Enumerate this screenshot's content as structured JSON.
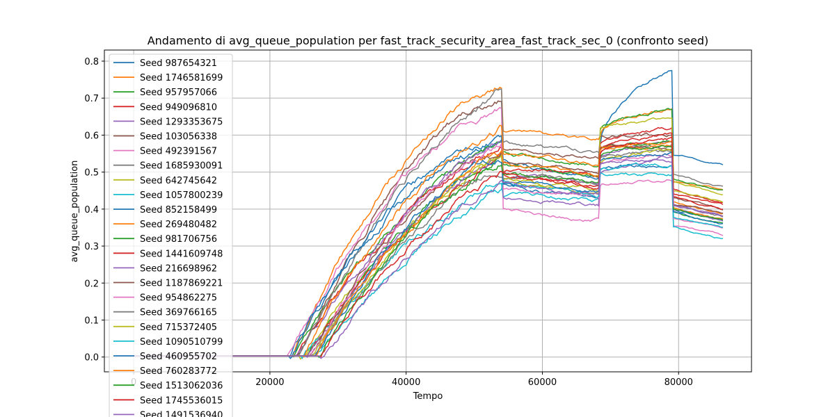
{
  "chart_data": {
    "type": "line",
    "title": "Andamento di avg_queue_population per fast_track_security_area_fast_track_sec_0 (confronto seed)",
    "xlabel": "Tempo",
    "ylabel": "avg_queue_population",
    "xlim": [
      -4300,
      90700
    ],
    "ylim": [
      -0.04,
      0.83
    ],
    "xticks": [
      0,
      20000,
      40000,
      60000,
      80000
    ],
    "xtick_labels": [
      "0",
      "20000",
      "40000",
      "60000",
      "80000"
    ],
    "yticks": [
      0.0,
      0.1,
      0.2,
      0.3,
      0.4,
      0.5,
      0.6,
      0.7,
      0.8
    ],
    "ytick_labels": [
      "0.0",
      "0.1",
      "0.2",
      "0.3",
      "0.4",
      "0.5",
      "0.6",
      "0.7",
      "0.8"
    ],
    "grid": true,
    "legend_position": "upper-left",
    "series": [
      {
        "name": "Seed 987654321",
        "color": "#1f77b4",
        "start": 22900,
        "plateau": 0.55,
        "j1": 0.52,
        "j2": 0.58,
        "peak2": 0.78,
        "end": 0.52
      },
      {
        "name": "Seed 1746581699",
        "color": "#ff7f0e",
        "start": 23200,
        "plateau": 0.72,
        "j1": 0.62,
        "j2": 0.6,
        "peak2": 0.68,
        "end": 0.45
      },
      {
        "name": "Seed 957957066",
        "color": "#2ca02c",
        "start": 23500,
        "plateau": 0.56,
        "j1": 0.55,
        "j2": 0.62,
        "peak2": 0.67,
        "end": 0.45
      },
      {
        "name": "Seed 949096810",
        "color": "#d62728",
        "start": 23700,
        "plateau": 0.58,
        "j1": 0.52,
        "j2": 0.58,
        "peak2": 0.62,
        "end": 0.41
      },
      {
        "name": "Seed 1293353675",
        "color": "#9467bd",
        "start": 23900,
        "plateau": 0.6,
        "j1": 0.5,
        "j2": 0.54,
        "peak2": 0.58,
        "end": 0.38
      },
      {
        "name": "Seed 103056338",
        "color": "#8c564b",
        "start": 24100,
        "plateau": 0.68,
        "j1": 0.57,
        "j2": 0.6,
        "peak2": 0.6,
        "end": 0.4
      },
      {
        "name": "Seed 492391567",
        "color": "#e377c2",
        "start": 22600,
        "plateau": 0.65,
        "j1": 0.4,
        "j2": 0.46,
        "peak2": 0.48,
        "end": 0.33
      },
      {
        "name": "Seed 1685930091",
        "color": "#7f7f7f",
        "start": 24300,
        "plateau": 0.71,
        "j1": 0.58,
        "j2": 0.55,
        "peak2": 0.57,
        "end": 0.46
      },
      {
        "name": "Seed 642745642",
        "color": "#bcbd22",
        "start": 24500,
        "plateau": 0.54,
        "j1": 0.47,
        "j2": 0.62,
        "peak2": 0.64,
        "end": 0.44
      },
      {
        "name": "Seed 1057800239",
        "color": "#17becf",
        "start": 24700,
        "plateau": 0.49,
        "j1": 0.45,
        "j2": 0.49,
        "peak2": 0.49,
        "end": 0.32
      },
      {
        "name": "Seed 852158499",
        "color": "#1f77b4",
        "start": 23000,
        "plateau": 0.57,
        "j1": 0.46,
        "j2": 0.51,
        "peak2": 0.52,
        "end": 0.37
      },
      {
        "name": "Seed 269480482",
        "color": "#ff7f0e",
        "start": 24900,
        "plateau": 0.61,
        "j1": 0.55,
        "j2": 0.57,
        "peak2": 0.57,
        "end": 0.39
      },
      {
        "name": "Seed 981706756",
        "color": "#2ca02c",
        "start": 25100,
        "plateau": 0.54,
        "j1": 0.52,
        "j2": 0.56,
        "peak2": 0.58,
        "end": 0.36
      },
      {
        "name": "Seed 1441609748",
        "color": "#d62728",
        "start": 25300,
        "plateau": 0.55,
        "j1": 0.49,
        "j2": 0.56,
        "peak2": 0.6,
        "end": 0.42
      },
      {
        "name": "Seed 216698962",
        "color": "#9467bd",
        "start": 25500,
        "plateau": 0.58,
        "j1": 0.44,
        "j2": 0.5,
        "peak2": 0.53,
        "end": 0.37
      },
      {
        "name": "Seed 1187869221",
        "color": "#8c564b",
        "start": 25700,
        "plateau": 0.55,
        "j1": 0.53,
        "j2": 0.57,
        "peak2": 0.57,
        "end": 0.39
      },
      {
        "name": "Seed 954862275",
        "color": "#e377c2",
        "start": 25900,
        "plateau": 0.58,
        "j1": 0.46,
        "j2": 0.52,
        "peak2": 0.55,
        "end": 0.35
      },
      {
        "name": "Seed 369766165",
        "color": "#7f7f7f",
        "start": 26100,
        "plateau": 0.52,
        "j1": 0.5,
        "j2": 0.54,
        "peak2": 0.56,
        "end": 0.38
      },
      {
        "name": "Seed 715372405",
        "color": "#bcbd22",
        "start": 26300,
        "plateau": 0.57,
        "j1": 0.48,
        "j2": 0.53,
        "peak2": 0.56,
        "end": 0.42
      },
      {
        "name": "Seed 1090510799",
        "color": "#17becf",
        "start": 26500,
        "plateau": 0.48,
        "j1": 0.47,
        "j2": 0.51,
        "peak2": 0.52,
        "end": 0.35
      },
      {
        "name": "Seed 460955702",
        "color": "#1f77b4",
        "start": 26700,
        "plateau": 0.54,
        "j1": 0.48,
        "j2": 0.53,
        "peak2": 0.55,
        "end": 0.36
      },
      {
        "name": "Seed 760283772",
        "color": "#ff7f0e",
        "start": 26900,
        "plateau": 0.56,
        "j1": 0.52,
        "j2": 0.56,
        "peak2": 0.58,
        "end": 0.37
      },
      {
        "name": "Seed 1513062036",
        "color": "#2ca02c",
        "start": 27100,
        "plateau": 0.55,
        "j1": 0.5,
        "j2": 0.54,
        "peak2": 0.57,
        "end": 0.37
      },
      {
        "name": "Seed 1745536015",
        "color": "#d62728",
        "start": 27300,
        "plateau": 0.53,
        "j1": 0.49,
        "j2": 0.55,
        "peak2": 0.59,
        "end": 0.4
      },
      {
        "name": "Seed 1491536940",
        "color": "#9467bd",
        "start": 27500,
        "plateau": 0.52,
        "j1": 0.47,
        "j2": 0.52,
        "peak2": 0.54,
        "end": 0.38
      }
    ]
  }
}
